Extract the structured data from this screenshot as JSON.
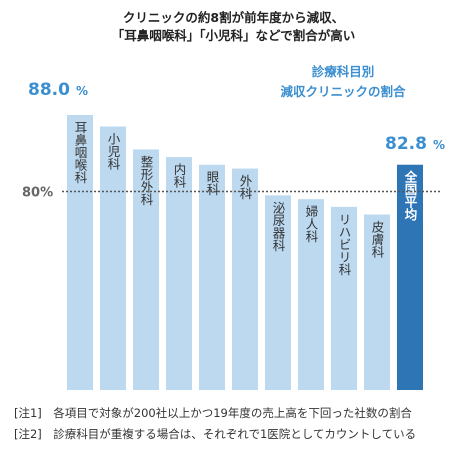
{
  "header": {
    "title_line1": "クリニックの約8割が前年度から減収、",
    "title_line2": "「耳鼻咽喉科」「小児科」などで割合が高い"
  },
  "legend": {
    "line1": "診療科目別",
    "line2": "減収クリニックの割合"
  },
  "highlights": {
    "first_value": "88.0",
    "first_unit": "%",
    "avg_value": "82.8",
    "avg_unit": "%"
  },
  "reference_label": "80%",
  "chart_data": {
    "type": "bar",
    "categories": [
      "耳鼻咽喉科",
      "小児科",
      "整形外科",
      "内科",
      "眼科",
      "外科",
      "泌尿器科",
      "婦人科",
      "リハビリ科",
      "皮膚科",
      "全国平均"
    ],
    "values": [
      88.0,
      86.8,
      84.4,
      83.6,
      82.8,
      82.4,
      79.6,
      79.2,
      78.4,
      77.6,
      82.8
    ],
    "reference_line": 80,
    "colors": {
      "bar": "#bcd9f0",
      "average_bar": "#2e75b6",
      "highlight_text": "#3b8fd0"
    }
  },
  "notes": {
    "note1": "[注1]　各項目で対象が200社以上かつ19年度の売上高を下回った社数の割合",
    "note2": "[注2]　診療科目が重複する場合は、それぞれで1医院としてカウントしている"
  }
}
